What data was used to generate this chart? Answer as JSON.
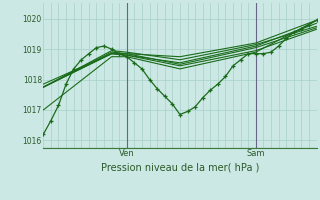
{
  "title": "Pression niveau de la mer( hPa )",
  "background_color": "#cce8e4",
  "grid_color": "#a8cfc8",
  "line_color": "#1a6b1a",
  "axis_color": "#3a7a3a",
  "text_color": "#2a5a2a",
  "ylim": [
    1015.75,
    1020.5
  ],
  "yticks": [
    1016,
    1017,
    1018,
    1019,
    1020
  ],
  "xlim": [
    0,
    72
  ],
  "ven_x": 22,
  "sam_x": 56,
  "n_vgrid": 37,
  "smooth_series": [
    {
      "x": [
        0,
        18,
        22,
        36,
        56,
        72
      ],
      "y": [
        1017.85,
        1018.85,
        1018.85,
        1018.75,
        1019.2,
        1019.95
      ]
    },
    {
      "x": [
        0,
        18,
        22,
        36,
        56,
        72
      ],
      "y": [
        1017.75,
        1018.85,
        1018.8,
        1018.55,
        1019.1,
        1019.85
      ]
    },
    {
      "x": [
        0,
        18,
        22,
        36,
        56,
        72
      ],
      "y": [
        1017.75,
        1018.95,
        1018.9,
        1018.65,
        1019.15,
        1019.75
      ]
    },
    {
      "x": [
        0,
        18,
        22,
        36,
        56,
        72
      ],
      "y": [
        1017.75,
        1018.9,
        1018.85,
        1018.5,
        1019.05,
        1019.7
      ]
    },
    {
      "x": [
        0,
        18,
        22,
        36,
        56,
        72
      ],
      "y": [
        1017.75,
        1018.85,
        1018.8,
        1018.45,
        1018.95,
        1019.65
      ]
    },
    {
      "x": [
        0,
        18,
        22,
        36,
        56,
        72
      ],
      "y": [
        1017.0,
        1018.75,
        1018.75,
        1018.35,
        1018.9,
        1019.95
      ]
    }
  ],
  "main_x": [
    0,
    2,
    4,
    6,
    8,
    10,
    12,
    14,
    16,
    18,
    20,
    22,
    24,
    26,
    28,
    30,
    32,
    34,
    36,
    38,
    40,
    42,
    44,
    46,
    48,
    50,
    52,
    54,
    56,
    58,
    60,
    62,
    64,
    66,
    68,
    70,
    72
  ],
  "main_y": [
    1016.2,
    1016.65,
    1017.15,
    1017.85,
    1018.35,
    1018.65,
    1018.85,
    1019.05,
    1019.1,
    1019.0,
    1018.85,
    1018.75,
    1018.55,
    1018.35,
    1018.0,
    1017.7,
    1017.45,
    1017.2,
    1016.85,
    1016.95,
    1017.1,
    1017.4,
    1017.65,
    1017.85,
    1018.1,
    1018.45,
    1018.65,
    1018.85,
    1018.85,
    1018.85,
    1018.9,
    1019.1,
    1019.35,
    1019.55,
    1019.65,
    1019.8,
    1019.95
  ]
}
